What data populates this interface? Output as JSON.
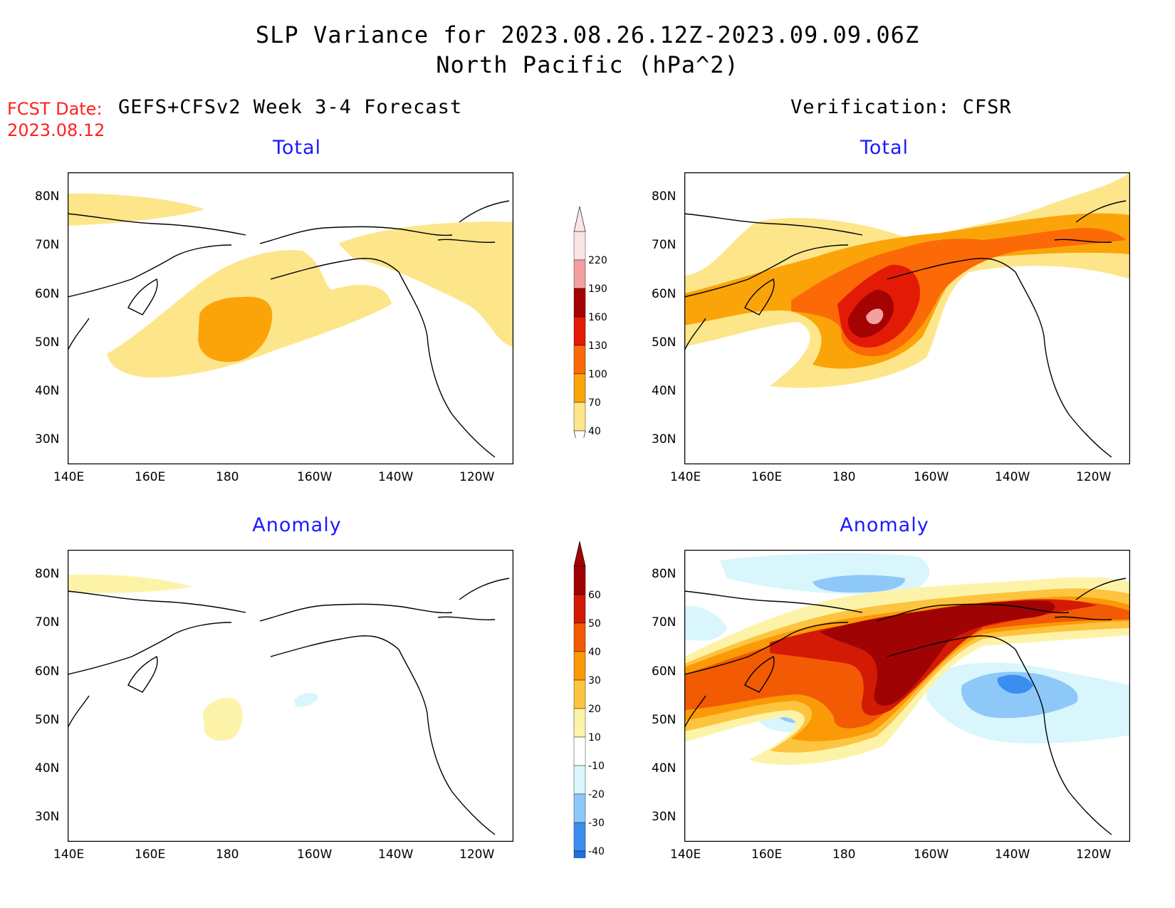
{
  "title_line1": "SLP Variance for 2023.08.26.12Z-2023.09.09.06Z",
  "title_line2": "North Pacific (hPa^2)",
  "fcst_label": "FCST Date:",
  "fcst_date": "2023.08.12",
  "left_header": "GEFS+CFSv2 Week 3-4 Forecast",
  "right_header": "Verification: CFSR",
  "panels": {
    "fc_total": "Total",
    "fc_anom": "Anomaly",
    "ver_total": "Total",
    "ver_anom": "Anomaly"
  },
  "lon_ticks": [
    "140E",
    "160E",
    "180",
    "160W",
    "140W",
    "120W"
  ],
  "lat_ticks": [
    "80N",
    "70N",
    "60N",
    "50N",
    "40N",
    "30N"
  ],
  "total_colorbar": {
    "labels": [
      "40",
      "70",
      "100",
      "130",
      "160",
      "190",
      "220"
    ],
    "colors": [
      "#fde68a",
      "#fba40a",
      "#fb6a06",
      "#e31a06",
      "#a50303",
      "#f2a0a0",
      "#fde4e4"
    ]
  },
  "anomaly_colorbar": {
    "labels": [
      "-40",
      "-30",
      "-20",
      "-10",
      "10",
      "20",
      "30",
      "40",
      "50",
      "60"
    ],
    "colors": [
      "#1e6fe0",
      "#3a8ef0",
      "#8ec8f8",
      "#d8f6fc",
      "#ffffff",
      "#fdf3a8",
      "#fdc440",
      "#fb9a06",
      "#f25a04",
      "#d21a04",
      "#a00303"
    ]
  }
}
